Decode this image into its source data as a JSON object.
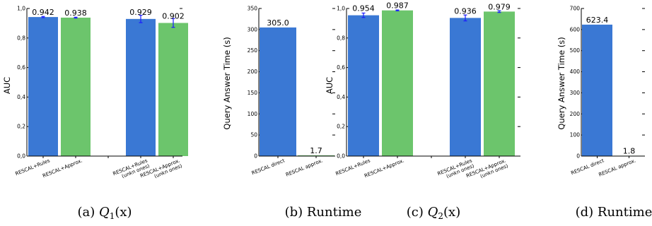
{
  "colors": {
    "blue": "#3a78d4",
    "green": "#6cc56c",
    "error": "#1a1aff",
    "axis": "#000000"
  },
  "chart_data": [
    {
      "type": "bar",
      "ylabel": "AUC",
      "ylim": [
        0,
        1.0
      ],
      "yticks": [
        "0,0",
        "0,2",
        "0,4",
        "0,6",
        "0,8",
        "1,0"
      ],
      "categories": [
        "RESCAL+Rules",
        "RESCAL+Approx.",
        "",
        "RESCAL+Rules (unkn ones)",
        "RESCAL+Approx. (unkn ones)"
      ],
      "values": [
        0.942,
        0.938,
        0,
        0.929,
        0.902
      ],
      "errors": [
        0.004,
        0.003,
        0,
        0.025,
        0.03
      ],
      "bar_colors": [
        "blue",
        "green",
        "none",
        "blue",
        "green"
      ],
      "value_labels": [
        "0.942",
        "0.938",
        "",
        "0.929",
        "0.902"
      ],
      "caption": {
        "pre": "(a) ",
        "var": "Q",
        "sub": "1",
        "post": "(x)"
      }
    },
    {
      "type": "bar",
      "ylabel": "Query Answer Time (s)",
      "ylim": [
        0,
        350
      ],
      "yticks": [
        "0",
        "50",
        "100",
        "150",
        "200",
        "250",
        "300",
        "350"
      ],
      "categories": [
        "RESCAL direct",
        "RESCAL approx."
      ],
      "values": [
        305.0,
        1.7
      ],
      "bar_colors": [
        "blue",
        "green"
      ],
      "value_labels": [
        "305.0",
        "1.7"
      ],
      "caption": {
        "pre": "(b) Runtime",
        "var": "",
        "sub": "",
        "post": ""
      }
    },
    {
      "type": "bar",
      "ylabel": "AUC",
      "ylim": [
        0,
        1.0
      ],
      "yticks": [
        "0,0",
        "0,2",
        "0,4",
        "0,6",
        "0,8",
        "1,0"
      ],
      "categories": [
        "RESCAL+Rules",
        "RESCAL+Approx.",
        "",
        "RESCAL+Rules (unkn ones)",
        "RESCAL+Approx. (unkn ones)"
      ],
      "values": [
        0.954,
        0.987,
        0,
        0.936,
        0.979
      ],
      "errors": [
        0.015,
        0.003,
        0,
        0.02,
        0.006
      ],
      "bar_colors": [
        "blue",
        "green",
        "none",
        "blue",
        "green"
      ],
      "value_labels": [
        "0.954",
        "0.987",
        "",
        "0.936",
        "0.979"
      ],
      "caption": {
        "pre": "(c) ",
        "var": "Q",
        "sub": "2",
        "post": "(x)"
      }
    },
    {
      "type": "bar",
      "ylabel": "Query Answer Time (s)",
      "ylim": [
        0,
        700
      ],
      "yticks": [
        "0",
        "100",
        "200",
        "300",
        "400",
        "500",
        "600",
        "700"
      ],
      "categories": [
        "RESCAL direct",
        "RESCAL approx."
      ],
      "values": [
        623.4,
        1.8
      ],
      "bar_colors": [
        "blue",
        "green"
      ],
      "value_labels": [
        "623.4",
        "1.8"
      ],
      "caption": {
        "pre": "(d) Runtime",
        "var": "",
        "sub": "",
        "post": ""
      }
    }
  ]
}
